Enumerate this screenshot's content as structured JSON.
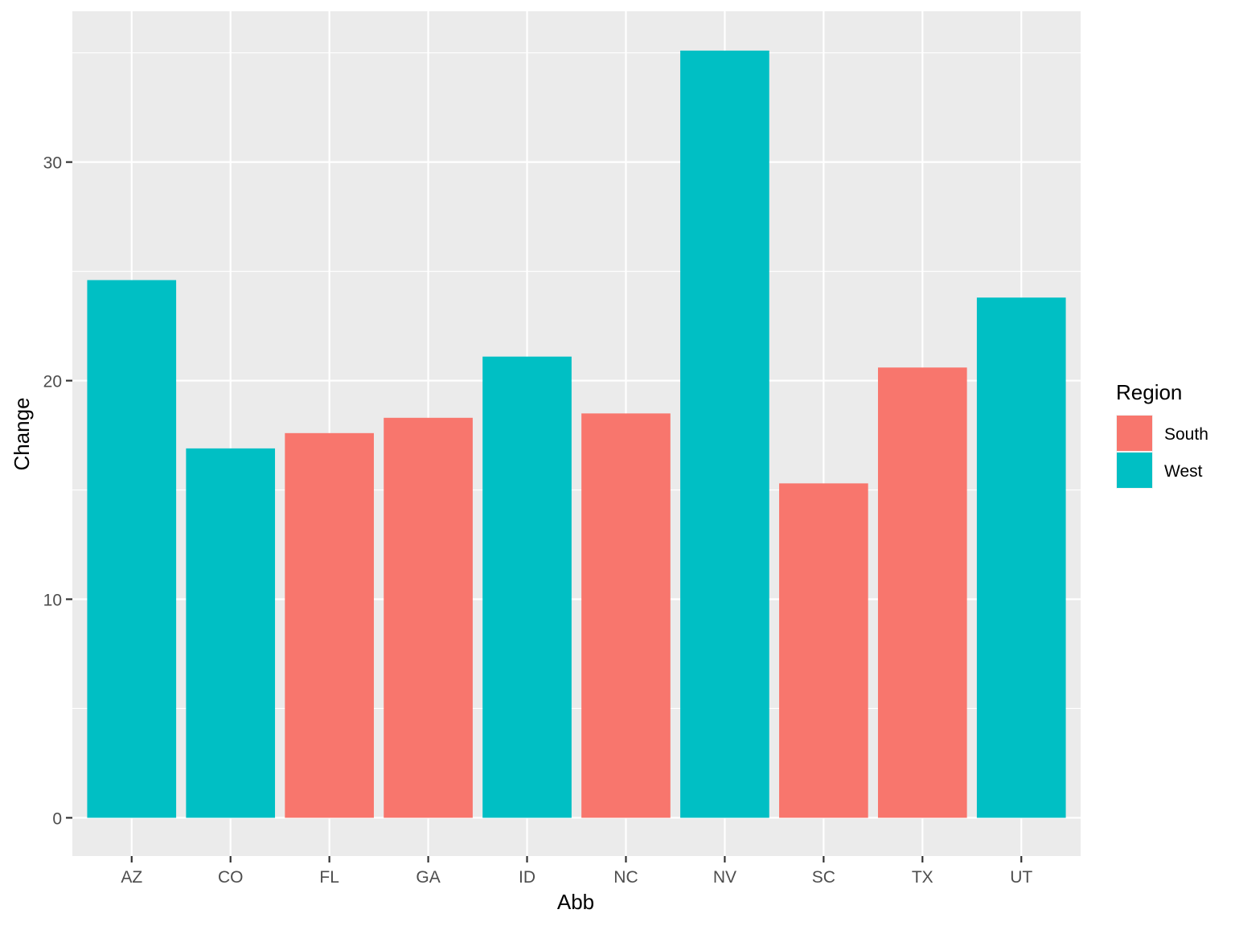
{
  "chart_data": {
    "type": "bar",
    "categories": [
      "AZ",
      "CO",
      "FL",
      "GA",
      "ID",
      "NC",
      "NV",
      "SC",
      "TX",
      "UT"
    ],
    "values": [
      24.6,
      16.9,
      17.6,
      18.3,
      21.1,
      18.5,
      35.1,
      15.3,
      20.6,
      23.8
    ],
    "groups": [
      "West",
      "West",
      "South",
      "South",
      "West",
      "South",
      "West",
      "South",
      "South",
      "West"
    ],
    "xlabel": "Abb",
    "ylabel": "Change",
    "ylim": [
      -1.75,
      36.9
    ],
    "yticks": [
      0,
      10,
      20,
      30
    ],
    "ytick_labels": [
      "0",
      "10",
      "20",
      "30"
    ],
    "grid": true,
    "legend": {
      "title": "Region",
      "placement": "right",
      "entries": [
        {
          "name": "South",
          "color": "#F8766D"
        },
        {
          "name": "West",
          "color": "#00BFC4"
        }
      ]
    },
    "colors": {
      "panel": "#EBEBEB",
      "grid": "#FFFFFF"
    }
  }
}
